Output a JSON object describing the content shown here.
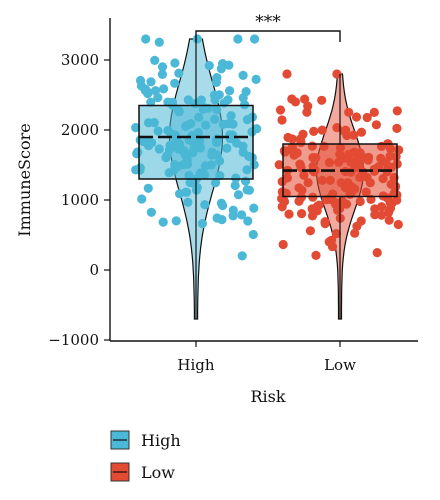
{
  "chart_data": {
    "type": "box-violin-jitter",
    "xlabel": "Risk",
    "ylabel": "ImmuneScore",
    "ylim": [
      -1000,
      3500
    ],
    "yticks": [
      -1000,
      0,
      1000,
      2000,
      3000
    ],
    "significance": "***",
    "categories": [
      "High",
      "Low"
    ],
    "legend": {
      "title": "",
      "entries": [
        "High",
        "Low"
      ],
      "position": "bottom-left"
    },
    "colors": {
      "High": "#4ab8d6",
      "Low": "#e24a33",
      "High_violin": "#a9dcea",
      "Low_violin": "#f3a99e"
    },
    "series": [
      {
        "name": "High",
        "min": -700,
        "q1": 1300,
        "median": 1900,
        "q3": 2350,
        "max": 3300
      },
      {
        "name": "Low",
        "min": -700,
        "q1": 1050,
        "median": 1420,
        "q3": 1800,
        "max": 2800
      }
    ]
  }
}
